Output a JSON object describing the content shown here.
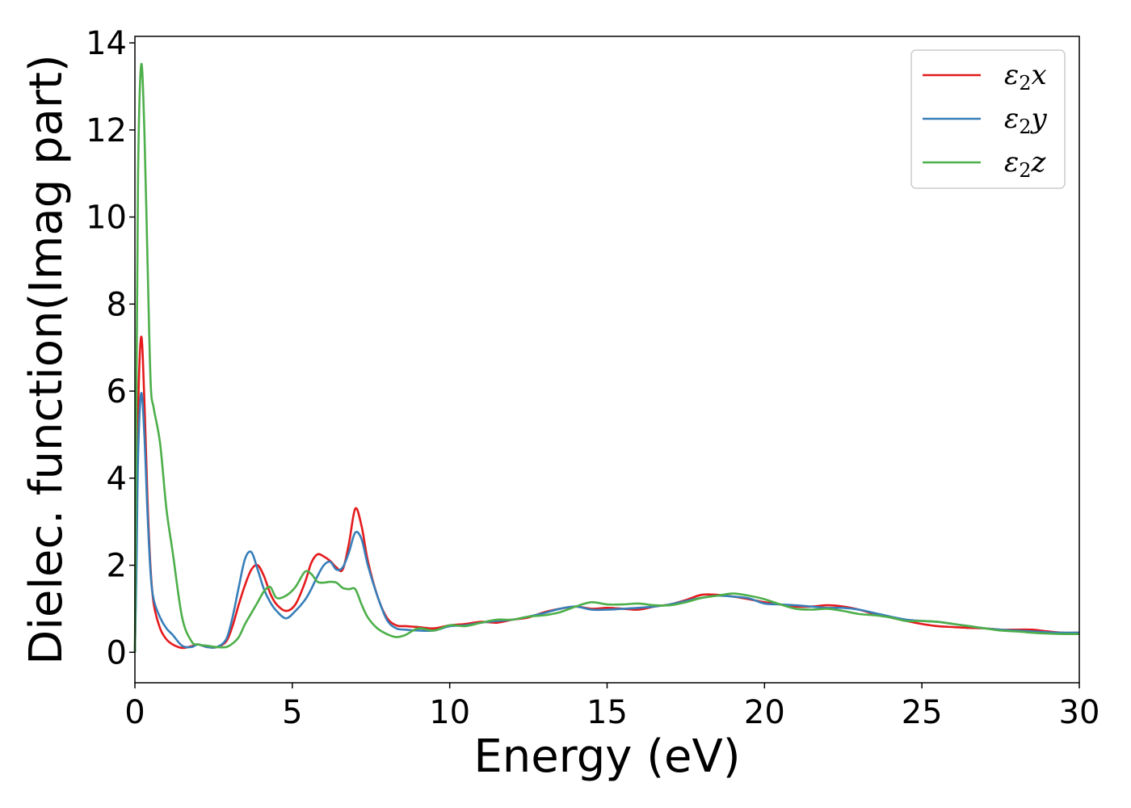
{
  "chart_data": {
    "type": "line",
    "title": "",
    "xlabel": "Energy (eV)",
    "ylabel": "Dielec. function(Imag part)",
    "xlim": [
      0,
      30
    ],
    "ylim": [
      -0.7,
      14.15
    ],
    "xticks": [
      0,
      5,
      10,
      15,
      20,
      25,
      30
    ],
    "xtick_labels": [
      "0",
      "5",
      "10",
      "15",
      "20",
      "25",
      "30"
    ],
    "yticks": [
      0,
      2,
      4,
      6,
      8,
      10,
      12,
      14
    ],
    "ytick_labels": [
      "0",
      "2",
      "4",
      "6",
      "8",
      "10",
      "12",
      "14"
    ],
    "grid": false,
    "legend_position": "top-right",
    "series": [
      {
        "name": "ε2x",
        "label_base": "ε",
        "label_sub": "2",
        "label_var": "x",
        "color": "#e41a1c",
        "x": [
          0,
          0.05,
          0.1,
          0.2,
          0.3,
          0.4,
          0.5,
          0.6,
          0.8,
          1.0,
          1.2,
          1.5,
          1.8,
          2.0,
          2.3,
          2.6,
          2.9,
          3.1,
          3.3,
          3.5,
          3.7,
          3.9,
          4.1,
          4.3,
          4.5,
          4.8,
          5.1,
          5.4,
          5.6,
          5.8,
          6.0,
          6.2,
          6.4,
          6.6,
          6.8,
          7.0,
          7.2,
          7.4,
          7.7,
          8.0,
          8.3,
          8.6,
          9.0,
          9.5,
          10.0,
          10.5,
          11.0,
          11.5,
          12.0,
          12.5,
          13.0,
          13.5,
          14.0,
          14.5,
          15.0,
          15.5,
          16.0,
          16.5,
          17.0,
          17.5,
          18.0,
          18.5,
          19.0,
          19.5,
          20.0,
          20.5,
          21.0,
          21.5,
          22.0,
          22.5,
          23.0,
          23.5,
          24.0,
          24.5,
          25.0,
          25.5,
          26.0,
          26.5,
          27.0,
          27.5,
          28.0,
          28.5,
          29.0,
          29.5,
          30.0
        ],
        "y": [
          0,
          2.5,
          5.5,
          7.25,
          5.8,
          3.5,
          1.9,
          1.1,
          0.55,
          0.3,
          0.18,
          0.1,
          0.14,
          0.18,
          0.12,
          0.12,
          0.25,
          0.6,
          1.1,
          1.55,
          1.9,
          2.0,
          1.75,
          1.35,
          1.1,
          0.95,
          1.1,
          1.6,
          2.05,
          2.25,
          2.2,
          2.1,
          1.95,
          1.9,
          2.5,
          3.3,
          2.9,
          2.1,
          1.3,
          0.8,
          0.62,
          0.6,
          0.58,
          0.55,
          0.62,
          0.65,
          0.7,
          0.68,
          0.75,
          0.8,
          0.92,
          1.0,
          1.05,
          1.0,
          1.02,
          1.0,
          0.98,
          1.05,
          1.1,
          1.2,
          1.32,
          1.32,
          1.28,
          1.22,
          1.15,
          1.1,
          1.05,
          1.05,
          1.08,
          1.05,
          0.98,
          0.88,
          0.8,
          0.72,
          0.65,
          0.6,
          0.58,
          0.56,
          0.55,
          0.52,
          0.52,
          0.52,
          0.48,
          0.45,
          0.45
        ]
      },
      {
        "name": "ε2y",
        "label_base": "ε",
        "label_sub": "2",
        "label_var": "y",
        "color": "#377eb8",
        "x": [
          0,
          0.05,
          0.1,
          0.2,
          0.3,
          0.4,
          0.5,
          0.6,
          0.8,
          1.0,
          1.2,
          1.5,
          1.8,
          2.0,
          2.3,
          2.6,
          2.9,
          3.1,
          3.3,
          3.5,
          3.7,
          3.9,
          4.1,
          4.3,
          4.5,
          4.8,
          5.1,
          5.4,
          5.6,
          5.8,
          6.0,
          6.2,
          6.4,
          6.6,
          6.8,
          7.0,
          7.2,
          7.4,
          7.7,
          8.0,
          8.3,
          8.6,
          9.0,
          9.5,
          10.0,
          10.5,
          11.0,
          11.5,
          12.0,
          12.5,
          13.0,
          13.5,
          14.0,
          14.5,
          15.0,
          15.5,
          16.0,
          16.5,
          17.0,
          17.5,
          18.0,
          18.5,
          19.0,
          19.5,
          20.0,
          20.5,
          21.0,
          21.5,
          22.0,
          22.5,
          23.0,
          23.5,
          24.0,
          24.5,
          25.0,
          25.5,
          26.0,
          26.5,
          27.0,
          27.5,
          28.0,
          28.5,
          29.0,
          29.5,
          30.0
        ],
        "y": [
          0,
          2.0,
          4.5,
          5.95,
          5.0,
          3.2,
          1.8,
          1.2,
          0.8,
          0.55,
          0.4,
          0.15,
          0.12,
          0.18,
          0.12,
          0.12,
          0.3,
          0.8,
          1.5,
          2.15,
          2.3,
          1.9,
          1.45,
          1.15,
          0.95,
          0.78,
          0.95,
          1.2,
          1.45,
          1.75,
          2.0,
          2.08,
          1.9,
          1.95,
          2.3,
          2.75,
          2.6,
          2.0,
          1.3,
          0.75,
          0.55,
          0.52,
          0.5,
          0.5,
          0.6,
          0.62,
          0.68,
          0.72,
          0.75,
          0.82,
          0.9,
          1.0,
          1.05,
          0.98,
          0.98,
          1.0,
          1.02,
          1.05,
          1.1,
          1.18,
          1.25,
          1.3,
          1.28,
          1.24,
          1.12,
          1.1,
          1.08,
          1.05,
          1.02,
          1.02,
          0.98,
          0.9,
          0.82,
          0.75,
          0.72,
          0.7,
          0.65,
          0.6,
          0.55,
          0.52,
          0.5,
          0.48,
          0.46,
          0.45,
          0.45
        ]
      },
      {
        "name": "ε2z",
        "label_base": "ε",
        "label_sub": "2",
        "label_var": "z",
        "color": "#4daf4a",
        "x": [
          0,
          0.05,
          0.1,
          0.2,
          0.3,
          0.4,
          0.5,
          0.6,
          0.8,
          1.0,
          1.2,
          1.5,
          1.8,
          2.0,
          2.3,
          2.6,
          2.9,
          3.1,
          3.3,
          3.5,
          3.7,
          3.9,
          4.1,
          4.3,
          4.5,
          4.8,
          5.1,
          5.4,
          5.6,
          5.8,
          6.0,
          6.2,
          6.4,
          6.6,
          6.8,
          7.0,
          7.2,
          7.4,
          7.7,
          8.0,
          8.3,
          8.6,
          9.0,
          9.5,
          10.0,
          10.5,
          11.0,
          11.5,
          12.0,
          12.5,
          13.0,
          13.5,
          14.0,
          14.5,
          15.0,
          15.5,
          16.0,
          16.5,
          17.0,
          17.5,
          18.0,
          18.5,
          19.0,
          19.5,
          20.0,
          20.5,
          21.0,
          21.5,
          22.0,
          22.5,
          23.0,
          23.5,
          24.0,
          24.5,
          25.0,
          25.5,
          26.0,
          26.5,
          27.0,
          27.5,
          28.0,
          28.5,
          29.0,
          29.5,
          30.0
        ],
        "y": [
          0,
          6.0,
          11.0,
          13.5,
          12.0,
          9.0,
          6.2,
          5.6,
          4.8,
          3.3,
          2.3,
          0.8,
          0.25,
          0.18,
          0.15,
          0.12,
          0.12,
          0.2,
          0.35,
          0.65,
          0.9,
          1.15,
          1.4,
          1.5,
          1.25,
          1.3,
          1.5,
          1.85,
          1.8,
          1.62,
          1.6,
          1.62,
          1.6,
          1.48,
          1.45,
          1.45,
          1.1,
          0.8,
          0.55,
          0.42,
          0.35,
          0.4,
          0.55,
          0.5,
          0.62,
          0.6,
          0.68,
          0.75,
          0.75,
          0.82,
          0.85,
          0.92,
          1.05,
          1.15,
          1.1,
          1.1,
          1.12,
          1.08,
          1.08,
          1.15,
          1.25,
          1.3,
          1.35,
          1.3,
          1.22,
          1.1,
          1.0,
          0.98,
          1.0,
          0.95,
          0.88,
          0.85,
          0.8,
          0.72,
          0.72,
          0.7,
          0.65,
          0.6,
          0.55,
          0.5,
          0.48,
          0.45,
          0.43,
          0.42,
          0.42
        ]
      }
    ]
  }
}
